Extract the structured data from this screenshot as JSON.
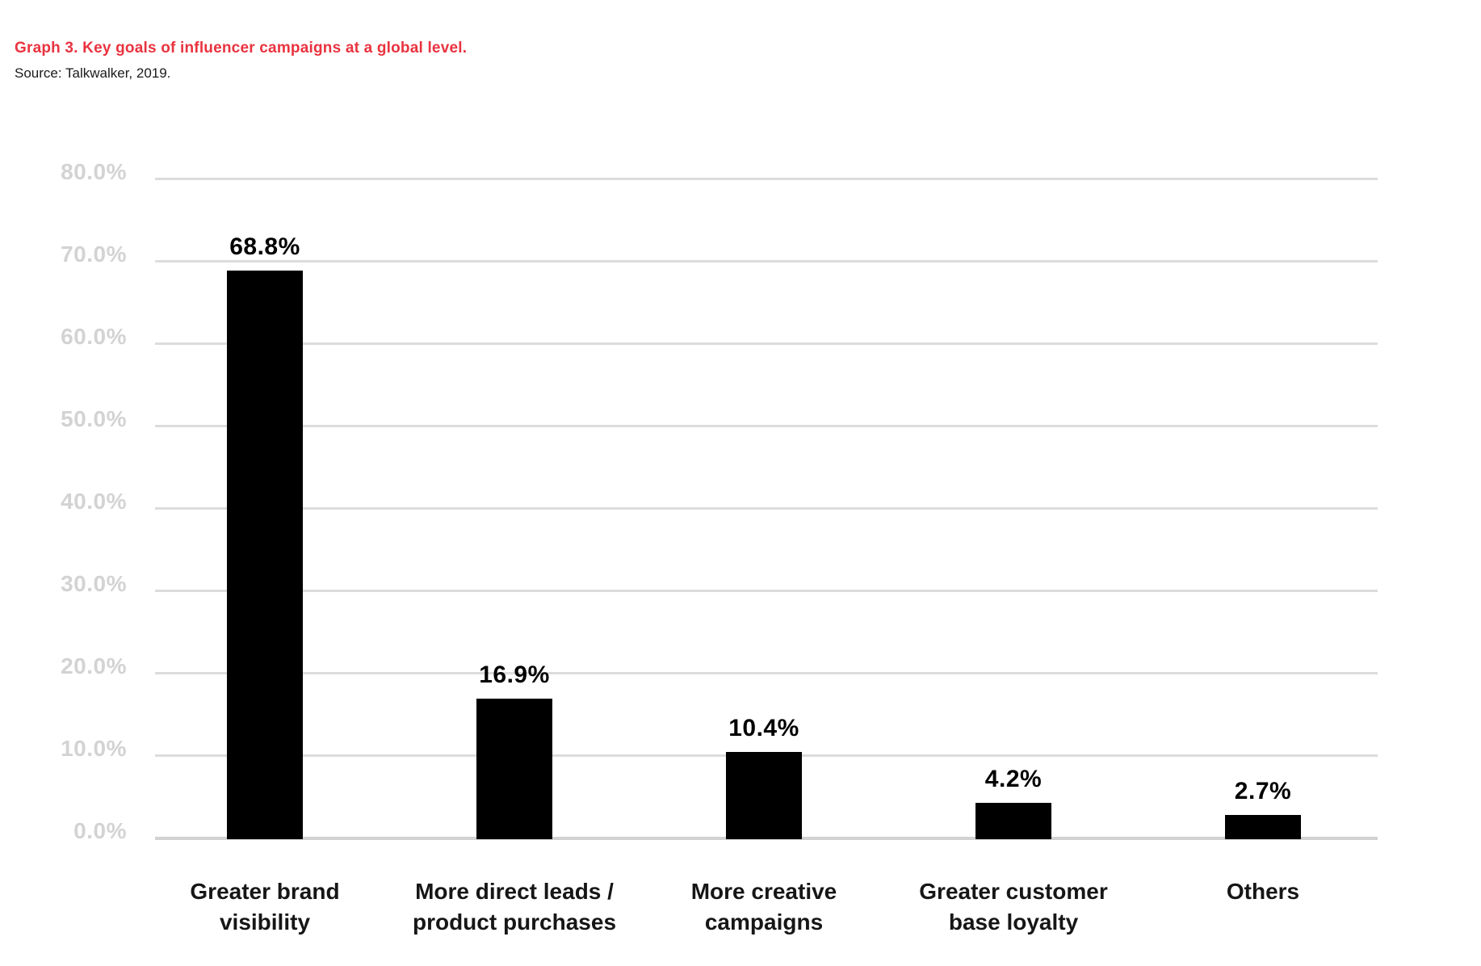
{
  "header": {
    "title": "Graph 3. Key goals of influencer campaigns at a global level.",
    "source": "Source: Talkwalker, 2019."
  },
  "colors": {
    "title_red": "#e9333f",
    "bar_black": "#000000",
    "gridline_gray": "#dcdcdc",
    "baseline_gray": "#d2d2d2",
    "axis_label_gray": "#d3d3d3",
    "category_text": "#161616"
  },
  "chart_data": {
    "type": "bar",
    "title": "Graph 3. Key goals of influencer campaigns at a global level.",
    "subtitle": "Source: Talkwalker, 2019.",
    "categories": [
      "Greater brand visibility",
      "More direct leads / product purchases",
      "More creative campaigns",
      "Greater customer base loyalty",
      "Others"
    ],
    "category_lines": [
      "Greater brand\nvisibility",
      "More direct leads /\nproduct purchases",
      "More creative\ncampaigns",
      "Greater customer\nbase loyalty",
      "Others"
    ],
    "values": [
      68.8,
      16.9,
      10.4,
      4.2,
      2.7
    ],
    "value_labels": [
      "68.8%",
      "16.9%",
      "10.4%",
      "4.2%",
      "2.7%"
    ],
    "xlabel": "",
    "ylabel": "",
    "ylim": [
      0,
      80
    ],
    "y_tick_step": 10,
    "y_tick_labels": [
      "0.0%",
      "10.0%",
      "20.0%",
      "30.0%",
      "40.0%",
      "50.0%",
      "60.0%",
      "70.0%",
      "80.0%"
    ],
    "grid": true,
    "legend": null,
    "bar_color": "#000000"
  }
}
